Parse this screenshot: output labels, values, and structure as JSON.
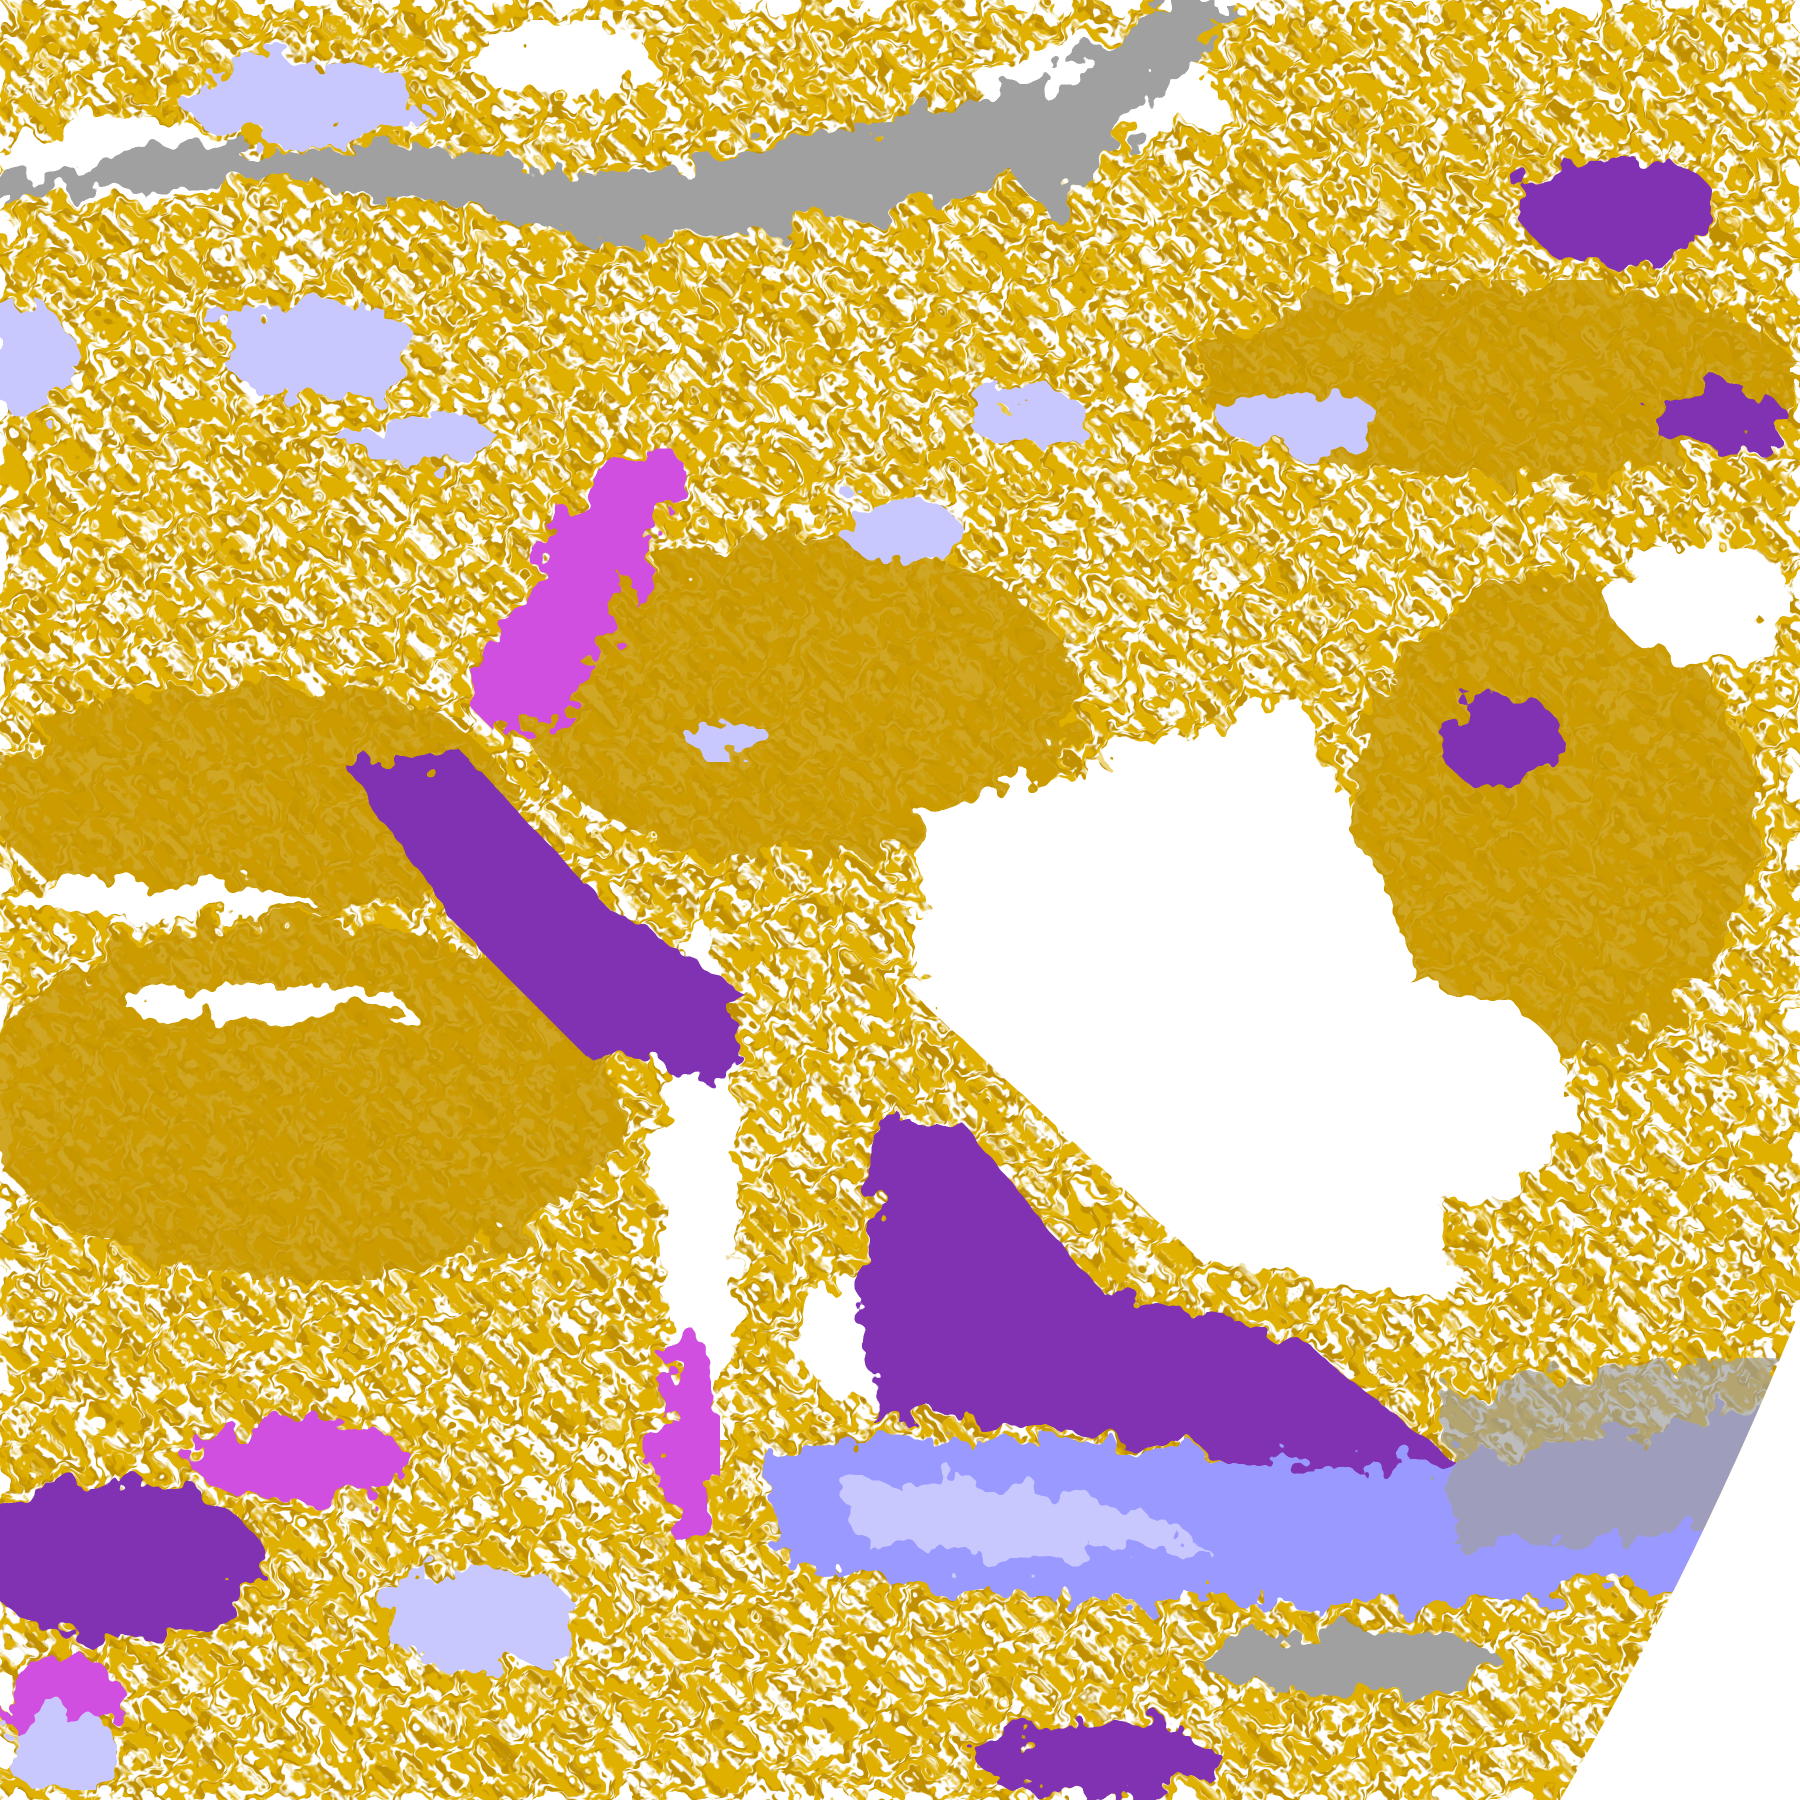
{
  "map": {
    "kind": "satellite cloud-type classification image",
    "text_labels": [],
    "colors": {
      "background_clear": "#ffffff",
      "gold_dark": "#c09000",
      "gold_light": "#e0b000",
      "purple": "#8033b3",
      "magenta": "#d050e0",
      "lavender_light": "#c8c8ff",
      "lavender_mid": "#9999ff",
      "very_light": "#eeeeff",
      "gray": "#a0a0a0"
    }
  }
}
